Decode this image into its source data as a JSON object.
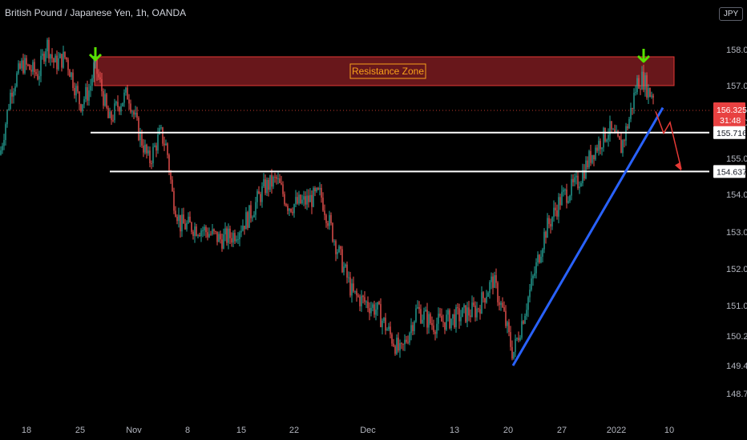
{
  "header": {
    "title": "British Pound / Japanese Yen, 1h, OANDA",
    "currency_button": "JPY"
  },
  "colors": {
    "up": "#26a69a",
    "down": "#ef5350",
    "zone_fill": "#7a1b20",
    "zone_stroke": "#e53935",
    "zone_text": "#f7a21b",
    "trendline": "#2962ff",
    "support_lines": "#ffffff",
    "arrows_marker": "#58e000",
    "projection": "#e53935"
  },
  "chart_data": {
    "type": "candlestick",
    "symbol": "British Pound / Japanese Yen",
    "interval": "1h",
    "source": "OANDA",
    "ylim": [
      148.5,
      159.2
    ],
    "y_ticks": [
      "158.000",
      "157.000",
      "156.000",
      "155.000",
      "154.000",
      "153.000",
      "152.000",
      "151.000",
      "150.200",
      "149.400",
      "148.700"
    ],
    "x_ticks": [
      "18",
      "25",
      "Nov",
      "8",
      "15",
      "22",
      "Dec",
      "13",
      "20",
      "27",
      "2022",
      "10"
    ],
    "price_path": [
      [
        0,
        155.1
      ],
      [
        14,
        156.9
      ],
      [
        28,
        157.6
      ],
      [
        48,
        157.3
      ],
      [
        58,
        158.2
      ],
      [
        68,
        157.6
      ],
      [
        82,
        157.8
      ],
      [
        100,
        156.5
      ],
      [
        112,
        156.9
      ],
      [
        118,
        157.6
      ],
      [
        128,
        156.8
      ],
      [
        136,
        156.0
      ],
      [
        148,
        156.5
      ],
      [
        160,
        156.8
      ],
      [
        172,
        155.8
      ],
      [
        186,
        154.9
      ],
      [
        200,
        155.7
      ],
      [
        208,
        155.3
      ],
      [
        215,
        154.0
      ],
      [
        225,
        153.2
      ],
      [
        250,
        153.1
      ],
      [
        275,
        152.8
      ],
      [
        290,
        152.9
      ],
      [
        310,
        153.4
      ],
      [
        330,
        154.2
      ],
      [
        345,
        154.4
      ],
      [
        360,
        153.7
      ],
      [
        380,
        153.8
      ],
      [
        400,
        154.0
      ],
      [
        420,
        152.6
      ],
      [
        440,
        151.3
      ],
      [
        470,
        150.9
      ],
      [
        500,
        149.7
      ],
      [
        520,
        150.9
      ],
      [
        540,
        150.5
      ],
      [
        570,
        150.7
      ],
      [
        595,
        150.9
      ],
      [
        615,
        151.7
      ],
      [
        628,
        150.8
      ],
      [
        640,
        149.7
      ],
      [
        660,
        151.3
      ],
      [
        680,
        153.0
      ],
      [
        700,
        153.9
      ],
      [
        720,
        154.3
      ],
      [
        740,
        155.2
      ],
      [
        760,
        155.8
      ],
      [
        775,
        155.3
      ],
      [
        785,
        156.1
      ],
      [
        795,
        157.1
      ],
      [
        802,
        157.2
      ],
      [
        810,
        156.8
      ]
    ],
    "last_price": "156.325",
    "countdown": "31:48",
    "levels": [
      {
        "price": "155.716",
        "value": 155.716
      },
      {
        "price": "154.637",
        "value": 154.637
      }
    ],
    "resistance_zone": {
      "label": "Resistance Zone",
      "from": 157.0,
      "to": 157.8
    },
    "trendline": {
      "from": [
        640,
        149.4
      ],
      "to": [
        827,
        156.4
      ]
    },
    "projection_path": [
      [
        818,
        156.3
      ],
      [
        828,
        155.7
      ],
      [
        836,
        156.0
      ],
      [
        850,
        154.7
      ]
    ],
    "markers": [
      "green-arrow-left-peak",
      "green-arrow-right-peak"
    ],
    "grid": false
  }
}
